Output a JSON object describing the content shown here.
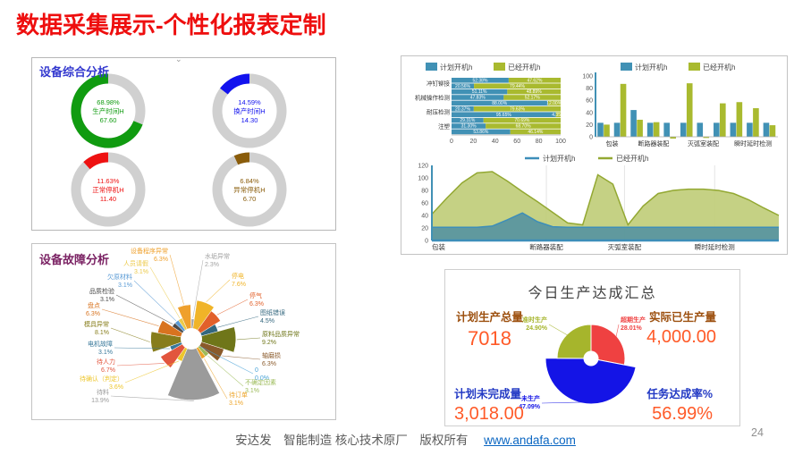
{
  "header": {
    "title": "数据采集展示-个性化报表定制"
  },
  "footer": {
    "company_line": "安达发　智能制造 核心技术原厂　版权所有",
    "link": "www.andafa.com",
    "page_number": "24"
  },
  "chart_data": [
    {
      "type": "pie",
      "subtype": "donut-gauges",
      "title": "设备综合分析",
      "ring_color": "#d0d0d0",
      "items": [
        {
          "pct": 68.98,
          "pct_label": "68.98%",
          "label": "生产时间H",
          "value": "67.60",
          "color": "#109b10"
        },
        {
          "pct": 14.59,
          "pct_label": "14.59%",
          "label": "换产时间H",
          "value": "14.30",
          "color": "#1212ee"
        },
        {
          "pct": 11.63,
          "pct_label": "11.63%",
          "label": "正常停机H",
          "value": "11.40",
          "color": "#ee1111"
        },
        {
          "pct": 6.84,
          "pct_label": "6.84%",
          "label": "异常停机H",
          "value": "6.70",
          "color": "#8a5c0a"
        }
      ]
    },
    {
      "type": "bar",
      "orientation": "horizontal",
      "stacked": true,
      "legend": [
        "计划开机h",
        "已经开机h"
      ],
      "series_colors": [
        "#4191b5",
        "#a9ba2f"
      ],
      "categories": [
        "冲钉铆接",
        "机械操作检测",
        "耐压检测",
        "注塑"
      ],
      "group_sizes": [
        2,
        3,
        2,
        3
      ],
      "rows": [
        [
          52.38,
          47.62
        ],
        [
          20.56,
          79.44
        ],
        [
          51.11,
          48.89
        ],
        [
          47.83,
          52.17
        ],
        [
          88.0,
          12.0
        ],
        [
          20.37,
          79.63
        ],
        [
          95.65,
          4.35
        ],
        [
          29.31,
          70.69
        ],
        [
          31.3,
          68.7
        ],
        [
          53.86,
          46.14
        ]
      ],
      "xlim": [
        0,
        100
      ],
      "x_ticks": [
        0,
        20,
        40,
        60,
        80,
        100
      ]
    },
    {
      "type": "bar",
      "orientation": "vertical",
      "legend": [
        "计划开机h",
        "已经开机h"
      ],
      "series_colors": [
        "#4191b5",
        "#a9ba2f"
      ],
      "categories": [
        "包装",
        "断路器装配",
        "灭弧室装配",
        "瞬时延时检测"
      ],
      "group_sizes": [
        2,
        3,
        3,
        3
      ],
      "pairs": [
        [
          23,
          20
        ],
        [
          23,
          87
        ],
        [
          44,
          28
        ],
        [
          23,
          24
        ],
        [
          23,
          -3
        ],
        [
          23,
          88
        ],
        [
          23,
          -2
        ],
        [
          23,
          55
        ],
        [
          23,
          57
        ],
        [
          23,
          47
        ],
        [
          23,
          19
        ]
      ],
      "ylim": [
        0,
        100
      ],
      "y_ticks": [
        0,
        20,
        40,
        60,
        80,
        100
      ]
    },
    {
      "type": "area",
      "legend": [
        "计划开机h",
        "已经开机h"
      ],
      "categories": [
        "包装",
        "断路器装配",
        "灭弧室装配",
        "瞬时延时检测"
      ],
      "ylim": [
        0,
        120
      ],
      "y_ticks": [
        0,
        20,
        40,
        60,
        80,
        100,
        120
      ],
      "series": [
        {
          "name": "已经开机h",
          "line_color": "#93a832",
          "fill_color": "#bfcc77",
          "values": [
            42,
            68,
            92,
            108,
            110,
            95,
            78,
            62,
            45,
            28,
            25,
            105,
            90,
            25,
            55,
            75,
            80,
            82,
            82,
            80,
            75,
            65,
            52,
            40
          ]
        },
        {
          "name": "计划开机h",
          "line_color": "#3d8eb9",
          "fill_color": "#4e8fa2",
          "values": [
            21,
            21,
            21,
            21,
            23,
            33,
            44,
            30,
            22,
            21,
            21,
            21,
            21,
            21,
            21,
            21,
            21,
            21,
            21,
            21,
            21,
            21,
            21,
            21
          ]
        }
      ]
    },
    {
      "type": "pie",
      "subtype": "rose",
      "title": "设备故障分析",
      "slices": [
        {
          "name": "水垢异常",
          "pct": 2.3,
          "pct_label": "2.3%",
          "color": "#a3a3a3"
        },
        {
          "name": "停电",
          "pct": 7.6,
          "pct_label": "7.6%",
          "color": "#f0b428"
        },
        {
          "name": "停气",
          "pct": 6.3,
          "pct_label": "6.3%",
          "color": "#e2602a"
        },
        {
          "name": "图纸错误",
          "pct": 4.5,
          "pct_label": "4.5%",
          "color": "#33677e"
        },
        {
          "name": "原料品质异常",
          "pct": 9.2,
          "pct_label": "9.2%",
          "color": "#6f7619"
        },
        {
          "name": "轴磨损",
          "pct": 6.3,
          "pct_label": "6.3%",
          "color": "#8a5a2a"
        },
        {
          "name": "0",
          "pct": 0.0,
          "pct_label": "0.0%",
          "color": "#4aa3d8"
        },
        {
          "name": "不确定因素",
          "pct": 3.1,
          "pct_label": "3.1%",
          "color": "#9cbb59"
        },
        {
          "name": "待订单",
          "pct": 3.1,
          "pct_label": "3.1%",
          "color": "#eda428"
        },
        {
          "name": "待料",
          "pct": 13.9,
          "pct_label": "13.9%",
          "color": "#9b9b9b"
        },
        {
          "name": "待确认（判定）",
          "pct": 3.6,
          "pct_label": "3.6%",
          "color": "#edc62c"
        },
        {
          "name": "待人力",
          "pct": 6.7,
          "pct_label": "6.7%",
          "color": "#e2553d"
        },
        {
          "name": "电机故障",
          "pct": 3.1,
          "pct_label": "3.1%",
          "color": "#38789a"
        },
        {
          "name": "模具异常",
          "pct": 8.1,
          "pct_label": "8.1%",
          "color": "#877d1b"
        },
        {
          "name": "盘点",
          "pct": 6.3,
          "pct_label": "6.3%",
          "color": "#d8731f"
        },
        {
          "name": "品质检验",
          "pct": 3.1,
          "pct_label": "3.1%",
          "color": "#4a4a4a"
        },
        {
          "name": "欠原材料",
          "pct": 3.1,
          "pct_label": "3.1%",
          "color": "#5b9bd5"
        },
        {
          "name": "人员请假",
          "pct": 3.1,
          "pct_label": "3.1%",
          "color": "#ecca4a"
        },
        {
          "name": "设备程序异常",
          "pct": 6.3,
          "pct_label": "6.3%",
          "color": "#efa02c"
        }
      ]
    },
    {
      "type": "pie",
      "subtype": "rose",
      "title": "今日生产达成汇总",
      "slices": [
        {
          "name": "超期生产",
          "pct": 28.01,
          "pct_label": "28.01%",
          "color": "#ef4141",
          "radius": 38
        },
        {
          "name": "未生产",
          "pct": 47.09,
          "pct_label": "47.09%",
          "color": "#1414e6",
          "radius": 51
        },
        {
          "name": "准时生产",
          "pct": 24.9,
          "pct_label": "24.90%",
          "color": "#a6b52c",
          "radius": 38
        }
      ],
      "stats": {
        "top_left": {
          "label": "计划生产总量",
          "value": "7018"
        },
        "top_right": {
          "label": "实际已生产量",
          "value": "4,000.00"
        },
        "bottom_left": {
          "label": "计划未完成量",
          "value": "3,018.00"
        },
        "bottom_right": {
          "label": "任务达成率%",
          "value": "56.99%"
        }
      }
    }
  ]
}
